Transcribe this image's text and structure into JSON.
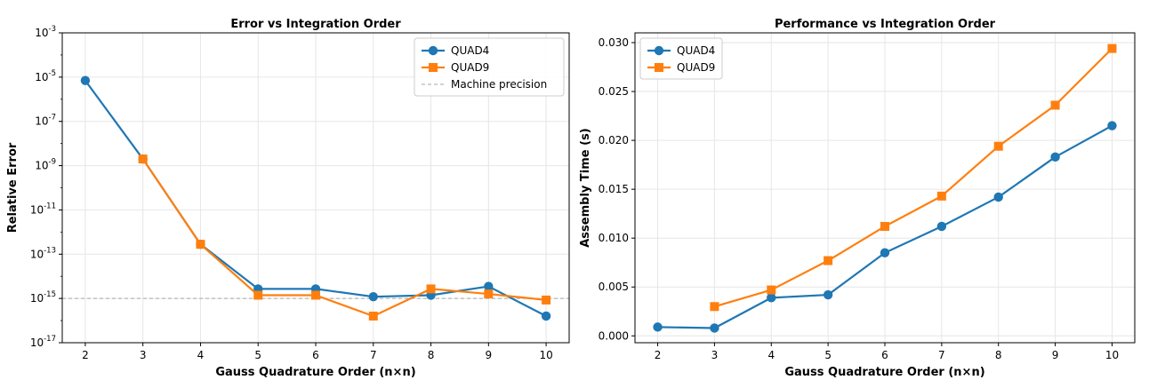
{
  "colors": {
    "quad4": "#1f77b4",
    "quad9": "#ff7f0e",
    "machine_precision": "#a6a6a6",
    "grid": "#e6e6e6",
    "axes": "#000000"
  },
  "chart_data": [
    {
      "type": "line",
      "title": "Error vs Integration Order",
      "xlabel": "Gauss Quadrature Order (n×n)",
      "ylabel": "Relative Error",
      "yscale": "log",
      "xlim": [
        1.6,
        10.4
      ],
      "ylim": [
        1e-17,
        0.001
      ],
      "xticks": [
        2,
        3,
        4,
        5,
        6,
        7,
        8,
        9,
        10
      ],
      "ytick_exponents": [
        -17,
        -15,
        -13,
        -11,
        -9,
        -7,
        -5,
        -3
      ],
      "ytick_base": "10",
      "grid": true,
      "legend_position": "upper right",
      "series": [
        {
          "name": "QUAD4",
          "marker": "circle",
          "color": "#1f77b4",
          "x": [
            2,
            3,
            4,
            5,
            6,
            7,
            8,
            9,
            10
          ],
          "y": [
            7e-06,
            2e-09,
            2.8e-13,
            2.7e-15,
            2.7e-15,
            1.2e-15,
            1.4e-15,
            3.5e-15,
            1.6e-16
          ]
        },
        {
          "name": "QUAD9",
          "marker": "square",
          "color": "#ff7f0e",
          "x": [
            3,
            4,
            5,
            6,
            7,
            8,
            9,
            10
          ],
          "y": [
            2e-09,
            2.8e-13,
            1.4e-15,
            1.4e-15,
            1.6e-16,
            2.7e-15,
            1.6e-15,
            8.5e-16
          ]
        }
      ],
      "reference_line": {
        "name": "Machine precision",
        "value": 1e-15,
        "style": "dashed",
        "color": "#a6a6a6"
      }
    },
    {
      "type": "line",
      "title": "Performance vs Integration Order",
      "xlabel": "Gauss Quadrature Order (n×n)",
      "ylabel": "Assembly Time (s)",
      "yscale": "linear",
      "xlim": [
        1.6,
        10.4
      ],
      "ylim": [
        -0.0007,
        0.031
      ],
      "xticks": [
        2,
        3,
        4,
        5,
        6,
        7,
        8,
        9,
        10
      ],
      "yticks": [
        0.0,
        0.005,
        0.01,
        0.015,
        0.02,
        0.025,
        0.03
      ],
      "ytick_labels": [
        "0.000",
        "0.005",
        "0.010",
        "0.015",
        "0.020",
        "0.025",
        "0.030"
      ],
      "grid": true,
      "legend_position": "upper left",
      "series": [
        {
          "name": "QUAD4",
          "marker": "circle",
          "color": "#1f77b4",
          "x": [
            2,
            3,
            4,
            5,
            6,
            7,
            8,
            9,
            10
          ],
          "y": [
            0.0009,
            0.0008,
            0.0039,
            0.0042,
            0.0085,
            0.0112,
            0.0142,
            0.0183,
            0.0215
          ]
        },
        {
          "name": "QUAD9",
          "marker": "square",
          "color": "#ff7f0e",
          "x": [
            3,
            4,
            5,
            6,
            7,
            8,
            9,
            10
          ],
          "y": [
            0.003,
            0.0047,
            0.0077,
            0.0112,
            0.0143,
            0.0194,
            0.0236,
            0.0294
          ]
        }
      ]
    }
  ]
}
